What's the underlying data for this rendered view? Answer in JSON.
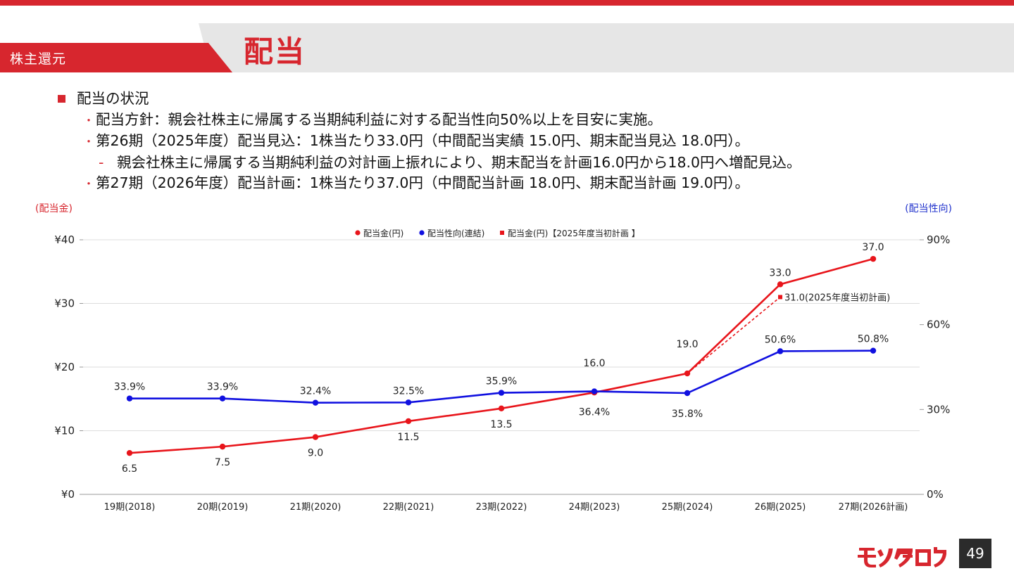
{
  "header": {
    "section": "株主還元",
    "title": "配当"
  },
  "bullets": {
    "main": "配当の状況",
    "items": [
      "配当方針：親会社株主に帰属する当期純利益に対する配当性向50%以上を目安に実施。",
      "第26期（2025年度）配当見込：1株当たり33.0円（中間配当実績 15.0円、期末配当見込 18.0円）。"
    ],
    "sub_note": "親会社株主に帰属する当期純利益の対計画上振れにより、期末配当を計画16.0円から18.0円へ増配見込。",
    "item3": "第27期（2026年度）配当計画：1株当たり37.0円（中間配当計画 18.0円、期末配当計画 19.0円）。"
  },
  "axis_units": {
    "left": "(配当金)",
    "right": "(配当性向)"
  },
  "chart_data": {
    "type": "line",
    "categories": [
      "19期(2018)",
      "20期(2019)",
      "21期(2020)",
      "22期(2021)",
      "23期(2022)",
      "24期(2023)",
      "25期(2024)",
      "26期(2025)",
      "27期(2026計画)"
    ],
    "y_left": {
      "ticks": [
        "¥0",
        "¥10",
        "¥20",
        "¥30",
        "¥40"
      ],
      "lim": [
        0,
        40
      ]
    },
    "y_right": {
      "ticks": [
        "0%",
        "30%",
        "60%",
        "90%"
      ],
      "lim": [
        0,
        90
      ]
    },
    "legend": [
      "配当金(円)",
      "配当性向(連結)",
      "配当金(円)【2025年度当初計画 】"
    ],
    "legend_position": "top",
    "grid": true,
    "series": [
      {
        "name": "配当金(円)",
        "axis": "left",
        "color": "#e8151b",
        "values": [
          6.5,
          7.5,
          9.0,
          11.5,
          13.5,
          16.0,
          19.0,
          33.0,
          37.0
        ],
        "labels": [
          "6.5",
          "7.5",
          "9.0",
          "11.5",
          "13.5",
          "16.0",
          "19.0",
          "33.0",
          "37.0"
        ]
      },
      {
        "name": "配当性向(連結)",
        "axis": "right",
        "color": "#1010e0",
        "values": [
          33.9,
          33.9,
          32.4,
          32.5,
          35.9,
          36.4,
          35.8,
          50.6,
          50.8
        ],
        "labels": [
          "33.9%",
          "33.9%",
          "32.4%",
          "32.5%",
          "35.9%",
          "36.4%",
          "35.8%",
          "50.6%",
          "50.8%"
        ]
      },
      {
        "name": "配当金(円)【2025年度当初計画 】",
        "axis": "left",
        "color": "#e8151b",
        "style": "dashed",
        "points": [
          {
            "x": "25期(2024)",
            "y": 19.0
          },
          {
            "x": "26期(2025)",
            "y": 31.0
          }
        ],
        "annotation": "31.0(2025年度当初計画)"
      }
    ]
  },
  "footer": {
    "logo": "モノタロウ",
    "page": "49"
  }
}
